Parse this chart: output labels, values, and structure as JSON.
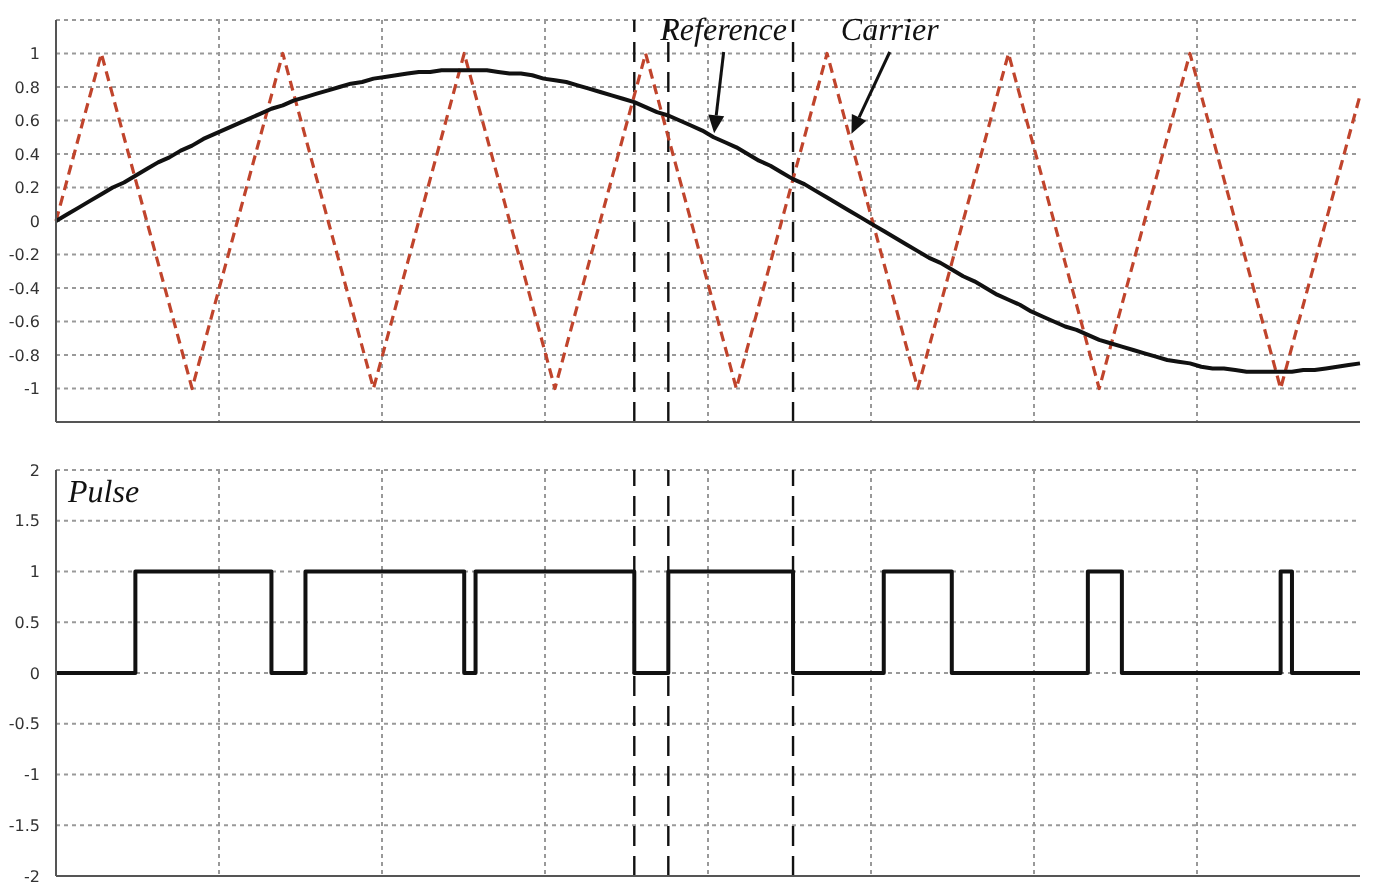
{
  "chart_data": [
    {
      "type": "line",
      "categories": [
        null,
        null,
        null,
        null,
        null,
        null,
        null,
        null,
        null,
        null,
        null,
        null,
        null,
        null,
        null,
        null,
        null,
        null,
        null,
        null,
        null,
        null,
        null,
        null,
        null,
        null,
        null,
        null,
        null,
        null,
        null,
        null,
        null,
        null,
        null,
        null,
        null,
        null,
        null,
        null,
        null,
        null,
        null,
        null,
        null,
        null,
        null,
        null,
        null,
        null,
        null,
        null,
        null,
        null,
        null,
        null,
        null,
        null,
        null,
        null,
        null,
        null,
        null,
        null,
        null,
        null,
        null,
        null,
        null,
        null,
        null,
        null,
        null,
        null,
        null,
        null,
        null,
        null,
        null,
        null,
        null,
        null,
        null,
        null,
        null,
        null,
        null,
        null,
        null,
        null,
        null,
        null,
        null,
        null,
        null,
        null,
        null,
        null,
        null,
        null,
        null,
        null,
        null,
        null,
        null,
        null,
        null,
        null,
        null,
        null,
        null,
        null,
        null,
        null,
        null,
        null
      ],
      "series": [
        {
          "name": "Carrier",
          "color": "#c0442c",
          "line_style": "dashed",
          "values": [
            0,
            0.25,
            0.5,
            0.75,
            1,
            0.75,
            0.5,
            0.25,
            0,
            -0.25,
            -0.5,
            -0.75,
            -1,
            -0.75,
            -0.5,
            -0.25,
            0,
            0.25,
            0.5,
            0.75,
            1,
            0.75,
            0.5,
            0.25,
            0,
            -0.25,
            -0.5,
            -0.75,
            -1,
            -0.75,
            -0.5,
            -0.25,
            0,
            0.25,
            0.5,
            0.75,
            1,
            0.75,
            0.5,
            0.25,
            0,
            -0.25,
            -0.5,
            -0.75,
            -1,
            -0.75,
            -0.5,
            -0.25,
            0,
            0.25,
            0.5,
            0.75,
            1,
            0.75,
            0.5,
            0.25,
            0,
            -0.25,
            -0.5,
            -0.75,
            -1,
            -0.75,
            -0.5,
            -0.25,
            0,
            0.25,
            0.5,
            0.75,
            1,
            0.75,
            0.5,
            0.25,
            0,
            -0.25,
            -0.5,
            -0.75,
            -1,
            -0.75,
            -0.5,
            -0.25,
            0,
            0.25,
            0.5,
            0.75,
            1,
            0.75,
            0.5,
            0.25,
            0,
            -0.25,
            -0.5,
            -0.75,
            -1,
            -0.75,
            -0.5,
            -0.25,
            0,
            0.25,
            0.5,
            0.75,
            1,
            0.75,
            0.5,
            0.25,
            0,
            -0.25,
            -0.5,
            -0.75,
            -1,
            -0.75,
            -0.5,
            -0.25,
            0,
            0.25,
            0.5,
            0.75
          ]
        },
        {
          "name": "Reference",
          "color": "#111111",
          "line_style": "solid",
          "values": [
            0,
            0.04,
            0.08,
            0.12,
            0.16,
            0.2,
            0.23,
            0.27,
            0.31,
            0.35,
            0.38,
            0.42,
            0.45,
            0.49,
            0.52,
            0.55,
            0.58,
            0.61,
            0.64,
            0.67,
            0.69,
            0.72,
            0.74,
            0.76,
            0.78,
            0.8,
            0.82,
            0.83,
            0.85,
            0.86,
            0.87,
            0.88,
            0.89,
            0.89,
            0.9,
            0.9,
            0.9,
            0.9,
            0.9,
            0.89,
            0.88,
            0.88,
            0.87,
            0.85,
            0.84,
            0.83,
            0.81,
            0.79,
            0.77,
            0.75,
            0.73,
            0.71,
            0.68,
            0.65,
            0.63,
            0.6,
            0.57,
            0.54,
            0.5,
            0.47,
            0.44,
            0.4,
            0.36,
            0.33,
            0.29,
            0.25,
            0.22,
            0.18,
            0.14,
            0.1,
            0.06,
            0.02,
            -0.02,
            -0.06,
            -0.1,
            -0.14,
            -0.18,
            -0.22,
            -0.25,
            -0.29,
            -0.33,
            -0.36,
            -0.4,
            -0.44,
            -0.47,
            -0.5,
            -0.54,
            -0.57,
            -0.6,
            -0.63,
            -0.65,
            -0.68,
            -0.71,
            -0.73,
            -0.75,
            -0.77,
            -0.79,
            -0.81,
            -0.83,
            -0.84,
            -0.85,
            -0.87,
            -0.88,
            -0.88,
            -0.89,
            -0.9,
            -0.9,
            -0.9,
            -0.9,
            -0.9,
            -0.89,
            -0.89,
            -0.88,
            -0.87,
            -0.86,
            -0.85
          ]
        }
      ],
      "ylim": [
        -1.2,
        1.2
      ],
      "yticks": [
        -1,
        -0.8,
        -0.6,
        -0.4,
        -0.2,
        0,
        0.2,
        0.4,
        0.6,
        0.8,
        1
      ],
      "grid": true,
      "tick_labels": "y"
    },
    {
      "type": "step",
      "categories": [
        null,
        null,
        null,
        null,
        null,
        null,
        null,
        null,
        null,
        null,
        null,
        null,
        null,
        null,
        null,
        null,
        null,
        null,
        null,
        null,
        null,
        null,
        null,
        null,
        null,
        null,
        null,
        null,
        null,
        null,
        null,
        null,
        null,
        null,
        null,
        null,
        null,
        null,
        null,
        null,
        null,
        null,
        null,
        null,
        null,
        null,
        null,
        null,
        null,
        null,
        null,
        null,
        null,
        null,
        null,
        null,
        null,
        null,
        null,
        null,
        null,
        null,
        null,
        null,
        null,
        null,
        null,
        null,
        null,
        null,
        null,
        null,
        null,
        null,
        null,
        null,
        null,
        null,
        null,
        null,
        null,
        null,
        null,
        null,
        null,
        null,
        null,
        null,
        null,
        null,
        null,
        null,
        null,
        null,
        null,
        null,
        null,
        null,
        null,
        null,
        null,
        null,
        null,
        null,
        null,
        null,
        null,
        null,
        null,
        null,
        null,
        null,
        null,
        null,
        null,
        null
      ],
      "series": [
        {
          "name": "Pulse",
          "color": "#111111",
          "line_style": "solid",
          "values": [
            0,
            0,
            0,
            0,
            0,
            0,
            0,
            1,
            1,
            1,
            1,
            1,
            1,
            1,
            1,
            1,
            1,
            1,
            1,
            0,
            0,
            0,
            1,
            1,
            1,
            1,
            1,
            1,
            1,
            1,
            1,
            1,
            1,
            1,
            1,
            1,
            0,
            1,
            1,
            1,
            1,
            1,
            1,
            1,
            1,
            1,
            1,
            1,
            1,
            1,
            1,
            0,
            0,
            0,
            1,
            1,
            1,
            1,
            1,
            1,
            1,
            1,
            1,
            1,
            1,
            0,
            0,
            0,
            0,
            0,
            0,
            0,
            0,
            1,
            1,
            1,
            1,
            1,
            1,
            0,
            0,
            0,
            0,
            0,
            0,
            0,
            0,
            0,
            0,
            0,
            0,
            1,
            1,
            1,
            0,
            0,
            0,
            0,
            0,
            0,
            0,
            0,
            0,
            0,
            0,
            0,
            0,
            0,
            1,
            0,
            0,
            0,
            0,
            0,
            0,
            0
          ]
        }
      ],
      "ylim": [
        -2,
        2
      ],
      "yticks": [
        -2,
        -1.5,
        -1,
        -0.5,
        0,
        0.5,
        1,
        1.5,
        2
      ],
      "grid": true,
      "tick_labels": "y"
    }
  ]
}
